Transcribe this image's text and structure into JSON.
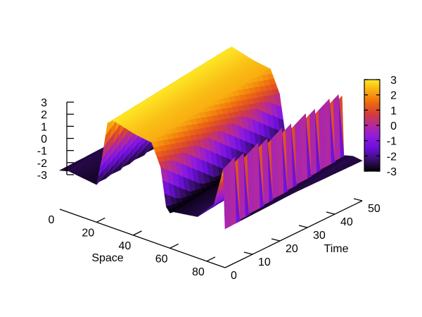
{
  "chart_data": {
    "type": "surface-3d",
    "title": "",
    "xlabel": "Space",
    "ylabel": "Time",
    "zlabel": "",
    "x_range": [
      0,
      90
    ],
    "y_range": [
      0,
      50
    ],
    "z_range": [
      -3,
      3
    ],
    "x_ticks": [
      "0",
      "20",
      "40",
      "60",
      "80"
    ],
    "y_ticks": [
      "0",
      "10",
      "20",
      "30",
      "40",
      "50"
    ],
    "z_ticks": [
      "3",
      "2",
      "1",
      "0",
      "-1",
      "-2",
      "-3"
    ],
    "colorbar": {
      "ticks": [
        "3",
        "2",
        "1",
        "0",
        "-1",
        "-2",
        "-3"
      ],
      "range": [
        -3,
        3
      ],
      "palette": [
        "#000000",
        "#3b0f70",
        "#6a0fd8",
        "#8e1ae0",
        "#b32a9a",
        "#d43d3a",
        "#ee6a0f",
        "#f8a90f",
        "#fde725"
      ]
    },
    "grid": false,
    "space_step": 1,
    "time_step": 2,
    "wave_profile": {
      "space": [
        0,
        5,
        20,
        23,
        26,
        29,
        41,
        50,
        55,
        58,
        60,
        62,
        75,
        84,
        88,
        90
      ],
      "value": [
        -2.7,
        -2.5,
        -2.8,
        -0.5,
        2.6,
        3.0,
        2.5,
        2.3,
        0.5,
        -2.6,
        -3.0,
        -2.8,
        -2.5,
        -1.0,
        1.5,
        2.8
      ]
    },
    "wave_drift_per_time": 0.2
  }
}
